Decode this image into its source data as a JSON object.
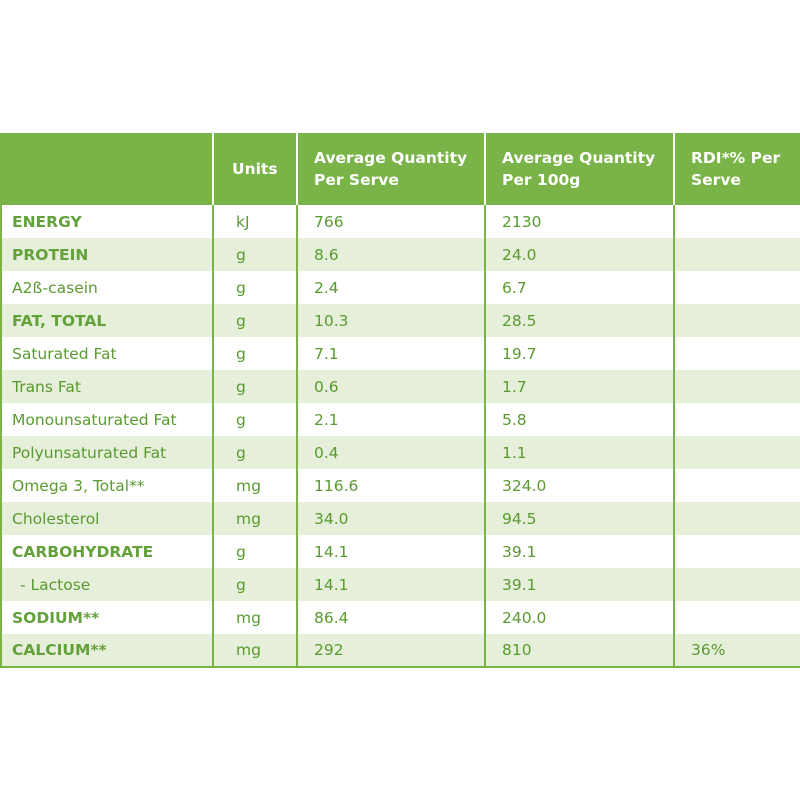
{
  "header": {
    "col0": "",
    "units": "Units",
    "per_serve": "Average Quantity Per Serve",
    "per_100g": "Average Quantity Per 100g",
    "rdi": "RDI*% Per Serve"
  },
  "rows": [
    {
      "name": "ENERGY",
      "bold": true,
      "units": "kJ",
      "per_serve": "766",
      "per_100g": "2130",
      "rdi": ""
    },
    {
      "name": "PROTEIN",
      "bold": true,
      "units": "g",
      "per_serve": "8.6",
      "per_100g": "24.0",
      "rdi": ""
    },
    {
      "name": "A2ß-casein",
      "bold": false,
      "units": "g",
      "per_serve": "2.4",
      "per_100g": "6.7",
      "rdi": ""
    },
    {
      "name": "FAT, TOTAL",
      "bold": true,
      "units": "g",
      "per_serve": "10.3",
      "per_100g": "28.5",
      "rdi": ""
    },
    {
      "name": "Saturated Fat",
      "bold": false,
      "units": "g",
      "per_serve": "7.1",
      "per_100g": "19.7",
      "rdi": ""
    },
    {
      "name": "Trans Fat",
      "bold": false,
      "units": "g",
      "per_serve": "0.6",
      "per_100g": "1.7",
      "rdi": ""
    },
    {
      "name": "Monounsaturated Fat",
      "bold": false,
      "units": "g",
      "per_serve": "2.1",
      "per_100g": "5.8",
      "rdi": ""
    },
    {
      "name": "Polyunsaturated Fat",
      "bold": false,
      "units": "g",
      "per_serve": "0.4",
      "per_100g": "1.1",
      "rdi": ""
    },
    {
      "name": "Omega 3, Total**",
      "bold": false,
      "units": "mg",
      "per_serve": "116.6",
      "per_100g": "324.0",
      "rdi": ""
    },
    {
      "name": "Cholesterol",
      "bold": false,
      "units": "mg",
      "per_serve": "34.0",
      "per_100g": "94.5",
      "rdi": ""
    },
    {
      "name": "CARBOHYDRATE",
      "bold": true,
      "units": "g",
      "per_serve": "14.1",
      "per_100g": "39.1",
      "rdi": ""
    },
    {
      "name": "- Lactose",
      "bold": false,
      "indent": true,
      "units": "g",
      "per_serve": "14.1",
      "per_100g": "39.1",
      "rdi": ""
    },
    {
      "name": "SODIUM**",
      "bold": true,
      "units": "mg",
      "per_serve": "86.4",
      "per_100g": "240.0",
      "rdi": ""
    },
    {
      "name": "CALCIUM**",
      "bold": true,
      "units": "mg",
      "per_serve": "292",
      "per_100g": "810",
      "rdi": "36%"
    }
  ],
  "colors": {
    "header_bg": "#7ab348",
    "row_alt_bg": "#e5efd9",
    "text": "#5a9a30"
  }
}
